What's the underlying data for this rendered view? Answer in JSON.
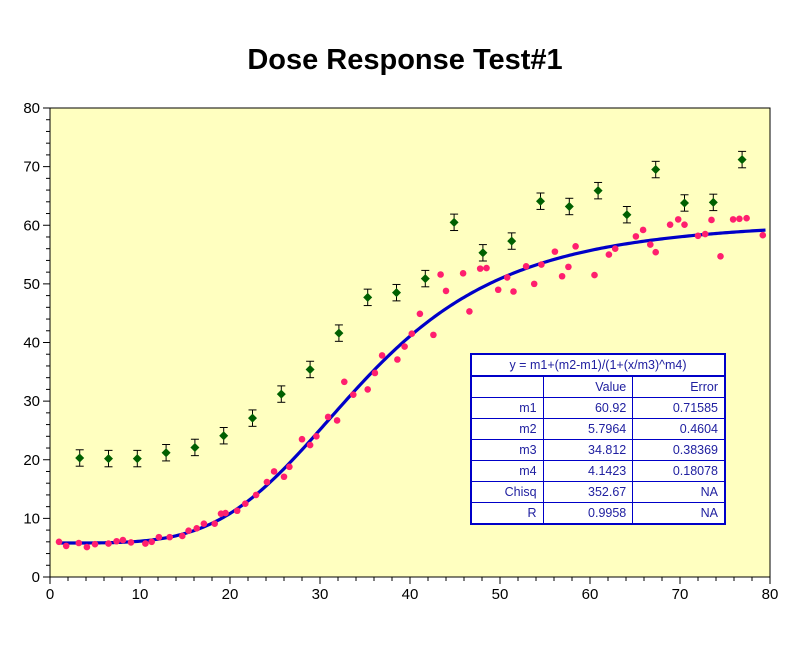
{
  "chart_data": {
    "type": "scatter",
    "title": "Dose Response Test#1",
    "xlabel": "",
    "ylabel": "",
    "xlim": [
      0,
      80
    ],
    "ylim": [
      0,
      80
    ],
    "x_ticks": [
      0,
      10,
      20,
      30,
      40,
      50,
      60,
      70,
      80
    ],
    "y_ticks": [
      0,
      10,
      20,
      30,
      40,
      50,
      60,
      70,
      80
    ],
    "grid": false,
    "background": "#ffffc0",
    "series": [
      {
        "kind": "points",
        "marker": "circle",
        "color": "#ff1f6e",
        "x": [
          1,
          1.8,
          3.2,
          4.1,
          5,
          6.5,
          7.4,
          8.1,
          9,
          10.6,
          11.3,
          12.1,
          13.3,
          14.7,
          15.4,
          16.3,
          17.1,
          18.3,
          19,
          19.5,
          20.8,
          21.7,
          22.9,
          24.1,
          24.9,
          26,
          26.6,
          28,
          28.9,
          29.6,
          30.9,
          31.9,
          32.7,
          33.7,
          35.3,
          36.1,
          36.9,
          38.6,
          39.4,
          40.2,
          41.1,
          42.6,
          43.4,
          44,
          45.9,
          46.6,
          47.8,
          48.5,
          49.8,
          50.8,
          51.5,
          52.9,
          53.8,
          54.6,
          56.1,
          56.9,
          57.6,
          58.4,
          60.5,
          62.1,
          62.8,
          65.1,
          65.9,
          66.7,
          67.3,
          68.9,
          69.8,
          70.5,
          72,
          72.8,
          73.5,
          74.5,
          75.9,
          76.6,
          77.4,
          79.2
        ],
        "y": [
          6.0,
          5.3,
          5.8,
          5.1,
          5.6,
          5.7,
          6.1,
          6.3,
          5.9,
          5.7,
          6.0,
          6.8,
          6.8,
          7.0,
          7.9,
          8.3,
          9.1,
          9.1,
          10.8,
          10.9,
          11.3,
          12.5,
          14.0,
          16.2,
          18.0,
          17.1,
          18.8,
          23.5,
          22.5,
          24.0,
          27.3,
          26.7,
          33.3,
          31.1,
          32.0,
          34.8,
          37.8,
          37.1,
          39.3,
          41.5,
          44.9,
          41.3,
          51.6,
          48.8,
          51.8,
          45.3,
          52.6,
          52.7,
          49.0,
          51.1,
          48.7,
          53.0,
          50.0,
          53.3,
          55.5,
          51.3,
          52.9,
          56.4,
          51.5,
          55.0,
          56.0,
          58.1,
          59.2,
          56.7,
          55.4,
          60.1,
          61.0,
          60.1,
          58.2,
          58.5,
          60.9,
          54.7,
          61.0,
          61.1,
          61.2,
          58.3
        ]
      },
      {
        "kind": "points-with-errorbars",
        "marker": "diamond",
        "color": "#006000",
        "x": [
          3.3,
          6.5,
          9.7,
          12.9,
          16.1,
          19.3,
          22.5,
          25.7,
          28.9,
          32.1,
          35.3,
          38.5,
          41.7,
          44.9,
          48.1,
          51.3,
          54.5,
          57.7,
          60.9,
          64.1,
          67.3,
          70.5,
          73.7,
          76.9
        ],
        "y": [
          20.3,
          20.2,
          20.2,
          21.2,
          22.1,
          24.1,
          27.1,
          31.2,
          35.4,
          41.6,
          47.7,
          48.5,
          50.9,
          60.5,
          55.3,
          57.3,
          64.1,
          63.2,
          65.9,
          61.8,
          69.5,
          63.8,
          63.9,
          71.2
        ],
        "error": [
          1.4,
          1.4,
          1.4,
          1.4,
          1.4,
          1.4,
          1.4,
          1.4,
          1.4,
          1.4,
          1.4,
          1.4,
          1.4,
          1.4,
          1.4,
          1.4,
          1.4,
          1.4,
          1.4,
          1.4,
          1.4,
          1.4,
          1.4,
          1.4
        ]
      },
      {
        "kind": "fit-curve",
        "color": "#0000c8",
        "equation_params": {
          "m1": 60.92,
          "m2": 5.7964,
          "m3": 34.812,
          "m4": 4.1423
        },
        "x_range": [
          1,
          79.5
        ]
      }
    ],
    "fit_table": {
      "equation": "y = m1+(m2-m1)/(1+(x/m3)^m4)",
      "header": [
        "",
        "Value",
        "Error"
      ],
      "rows": [
        [
          "m1",
          "60.92",
          "0.71585"
        ],
        [
          "m2",
          "5.7964",
          "0.4604"
        ],
        [
          "m3",
          "34.812",
          "0.38369"
        ],
        [
          "m4",
          "4.1423",
          "0.18078"
        ],
        [
          "Chisq",
          "352.67",
          "NA"
        ],
        [
          "R",
          "0.9958",
          "NA"
        ]
      ]
    }
  }
}
